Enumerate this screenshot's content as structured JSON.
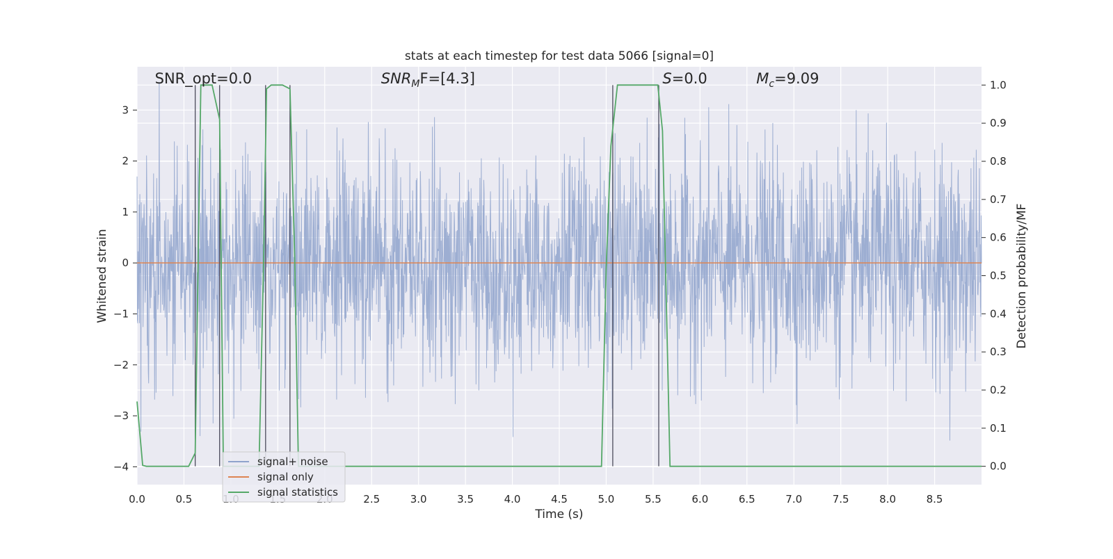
{
  "chart_data": {
    "type": "line",
    "title": "stats at each timestep for test data 5066 [signal=0]",
    "xlabel": "Time (s)",
    "ylabel": "Whitened strain",
    "y2label": "Detection probability/MF",
    "xlim": [
      0.0,
      9.0
    ],
    "ylim": [
      -4.35,
      3.85
    ],
    "y2lim": [
      -0.048,
      1.048
    ],
    "grid": true,
    "legend_position": "lower-left",
    "x_ticks": [
      "0.0",
      "0.5",
      "1.0",
      "1.5",
      "2.0",
      "2.5",
      "3.0",
      "3.5",
      "4.0",
      "4.5",
      "5.0",
      "5.5",
      "6.0",
      "6.5",
      "7.0",
      "7.5",
      "8.0",
      "8.5"
    ],
    "x_tick_values": [
      0.0,
      0.5,
      1.0,
      1.5,
      2.0,
      2.5,
      3.0,
      3.5,
      4.0,
      4.5,
      5.0,
      5.5,
      6.0,
      6.5,
      7.0,
      7.5,
      8.0,
      8.5
    ],
    "y_ticks": [
      "−4",
      "−3",
      "−2",
      "−1",
      "0",
      "1",
      "2",
      "3"
    ],
    "y_tick_values": [
      -4,
      -3,
      -2,
      -1,
      0,
      1,
      2,
      3
    ],
    "y2_ticks": [
      "0.0",
      "0.1",
      "0.2",
      "0.3",
      "0.4",
      "0.5",
      "0.6",
      "0.7",
      "0.8",
      "0.9",
      "1.0"
    ],
    "y2_tick_values": [
      0.0,
      0.1,
      0.2,
      0.3,
      0.4,
      0.5,
      0.6,
      0.7,
      0.8,
      0.9,
      1.0
    ],
    "annotations": [
      {
        "text": "SNR_opt=0.0",
        "x": 0.19,
        "y": 3.52
      },
      {
        "text": "SNR",
        "sub": "M",
        "after": "F=[4.3]",
        "italic_main": true,
        "x": 2.6,
        "y": 3.52
      },
      {
        "text": "S",
        "after": "=0.0",
        "italic_main": true,
        "x": 5.6,
        "y": 3.52
      },
      {
        "text": "M",
        "sub": "c",
        "after": "=9.09",
        "italic_main": true,
        "x": 6.6,
        "y": 3.52
      }
    ],
    "series": [
      {
        "name": "signal+ noise",
        "color": "#8fa3cc",
        "kind": "noise",
        "amplitude_range": [
          -3.65,
          3.55
        ],
        "x_range": [
          0.0,
          9.0
        ]
      },
      {
        "name": "signal only",
        "color": "#dd8452",
        "kind": "line",
        "x": [
          0.0,
          9.0
        ],
        "y": [
          0.0,
          0.0
        ]
      },
      {
        "name": "signal statistics",
        "color": "#55a868",
        "axis": "right",
        "kind": "line",
        "x": [
          0.0,
          0.06,
          0.1,
          0.15,
          0.55,
          0.62,
          0.68,
          0.72,
          0.8,
          0.88,
          0.92,
          1.3,
          1.35,
          1.38,
          1.43,
          1.55,
          1.63,
          1.68,
          1.72,
          4.95,
          5.0,
          5.05,
          5.12,
          5.55,
          5.6,
          5.68,
          5.75,
          9.0
        ],
        "y": [
          0.17,
          0.0025,
          0.0,
          0.0,
          0.0,
          0.035,
          1.0,
          1.0,
          1.0,
          0.91,
          0.0,
          0.0,
          0.55,
          0.99,
          1.0,
          1.0,
          0.99,
          0.55,
          0.0,
          0.0,
          0.52,
          0.84,
          1.0,
          1.0,
          0.88,
          0.0,
          0.0,
          0.0
        ]
      }
    ],
    "vertical_markers": [
      0.62,
      0.88,
      1.37,
      1.63,
      5.07,
      5.56
    ]
  }
}
